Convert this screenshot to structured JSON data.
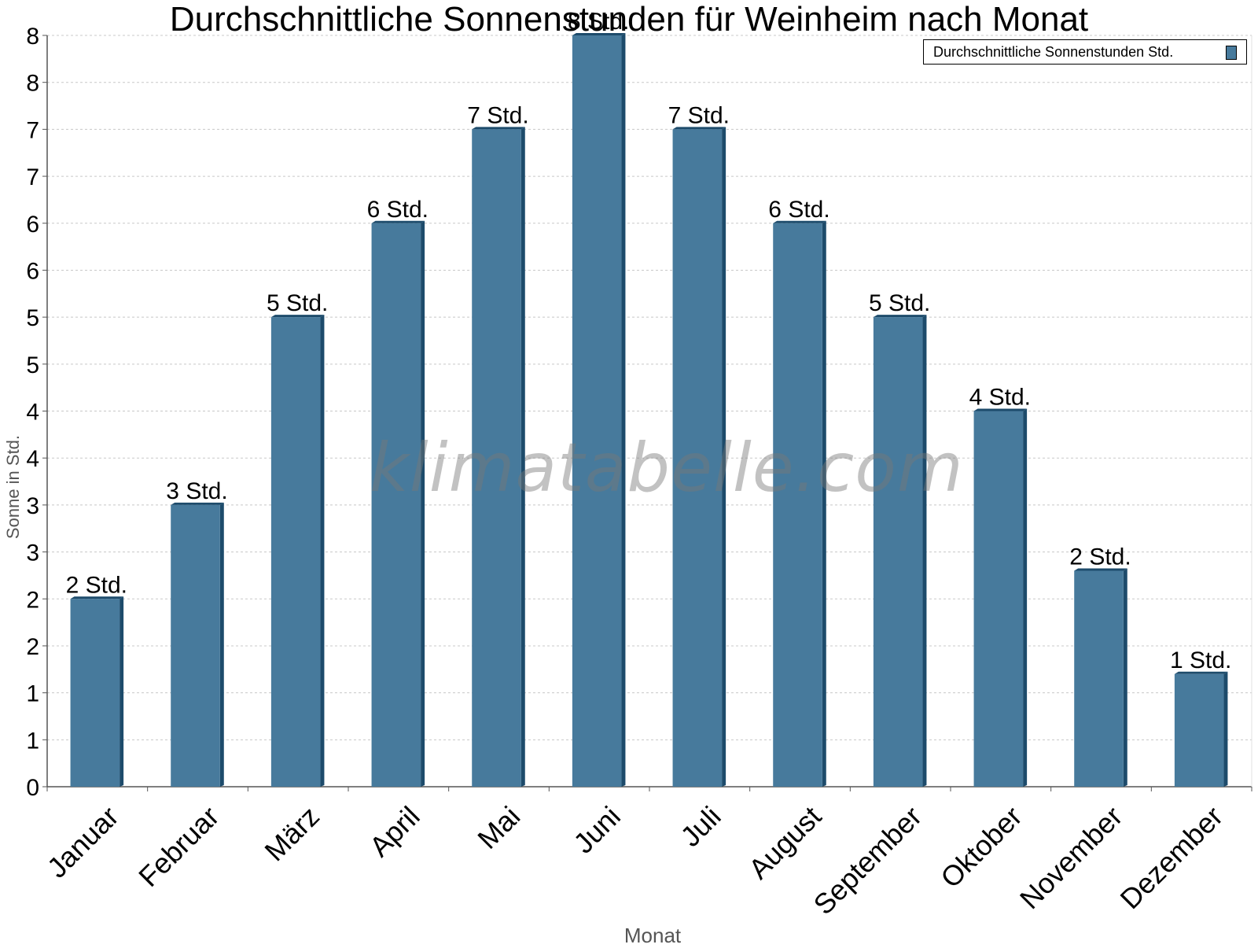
{
  "chart_data": {
    "type": "bar",
    "title": "Durchschnittliche Sonnenstunden für Weinheim nach Monat",
    "xlabel": "Monat",
    "ylabel": "Sonne in Std.",
    "categories": [
      "Januar",
      "Februar",
      "März",
      "April",
      "Mai",
      "Juni",
      "Juli",
      "August",
      "September",
      "Oktober",
      "November",
      "Dezember"
    ],
    "series": [
      {
        "name": "Durchschnittliche Sonnenstunden Std.",
        "values": [
          2.0,
          3.0,
          5.0,
          6.0,
          7.0,
          8.0,
          7.0,
          6.0,
          5.0,
          4.0,
          2.3,
          1.2
        ],
        "data_labels": [
          "2 Std.",
          "3 Std.",
          "5 Std.",
          "6 Std.",
          "7 Std.",
          "8 Std.",
          "7 Std.",
          "6 Std.",
          "5 Std.",
          "4 Std.",
          "2 Std.",
          "1 Std."
        ]
      }
    ],
    "y_ticks": [
      0,
      0.5,
      1,
      1.5,
      2,
      2.5,
      3,
      3.5,
      4,
      4.5,
      5,
      5.5,
      6,
      6.5,
      7,
      7.5,
      8
    ],
    "y_tick_labels": [
      "0",
      "1",
      "1",
      "2",
      "2",
      "3",
      "3",
      "4",
      "4",
      "5",
      "5",
      "6",
      "6",
      "7",
      "7",
      "8",
      "8"
    ],
    "ylim": [
      0,
      8
    ],
    "grid": true,
    "legend_position": "top-right",
    "bar_color": "#477a9c",
    "bar_edge_color": "#1d4b6b"
  },
  "watermark": "klimatabelle.com"
}
